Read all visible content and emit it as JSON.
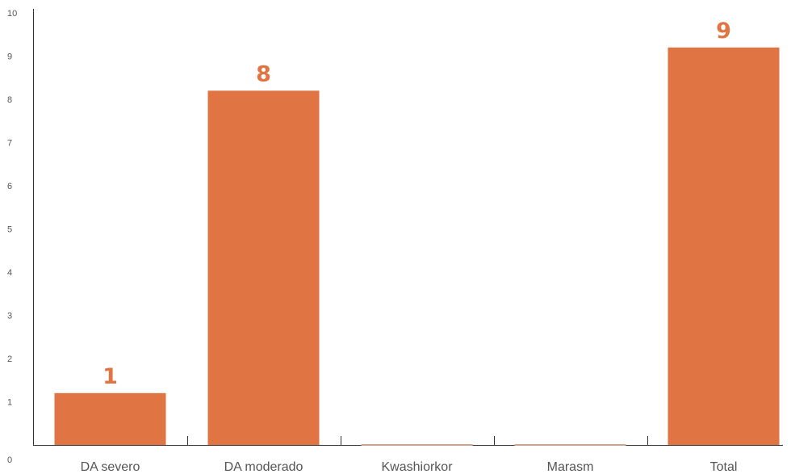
{
  "chart_data": {
    "type": "bar",
    "categories": [
      "DA severo",
      "DA moderado",
      "Kwashiorkor",
      "Marasm",
      "Total"
    ],
    "values": [
      1,
      8,
      0,
      0,
      9
    ],
    "value_labels": [
      "1",
      "8",
      "",
      "",
      "9"
    ],
    "title": "",
    "xlabel": "",
    "ylabel": "",
    "ylim": [
      0,
      10
    ],
    "yticks": [
      0,
      1,
      2,
      3,
      4,
      5,
      6,
      7,
      8,
      9,
      10
    ],
    "grid": false,
    "legend": "none",
    "bar_color": "#E07543",
    "label_color": "#E07543"
  }
}
